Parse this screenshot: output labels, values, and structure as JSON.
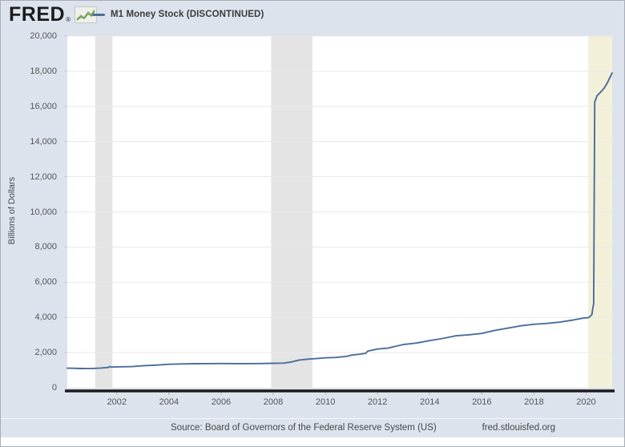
{
  "header": {
    "logo_text": "FRED",
    "logo_mark": "®",
    "legend_label": "M1 Money Stock (DISCONTINUED)",
    "legend_color": "#4a6d9b"
  },
  "footer": {
    "source": "Source: Board of Governors of the Federal Reserve System (US)",
    "site": "fred.stlouisfed.org"
  },
  "colors": {
    "card_background": "#dce3ed",
    "plot_background": "#ffffff",
    "gridline": "#e9e9e9",
    "recession_gray": "#e4e4e4",
    "covid_highlight": "#f3f0da",
    "axis_line": "#1b1b1b",
    "series_line": "#4a6d9b",
    "tick_mark": "#b5b5b5"
  },
  "chart_data": {
    "type": "line",
    "title": "M1 Money Stock (DISCONTINUED)",
    "xlabel": "",
    "ylabel": "Billions of Dollars",
    "units": "Billions of Dollars",
    "grid": true,
    "legend_position": "top-left",
    "xlim": [
      2000.1,
      2021.0
    ],
    "ylim": [
      0,
      20000
    ],
    "x_ticks": [
      2002,
      2004,
      2006,
      2008,
      2010,
      2012,
      2014,
      2016,
      2018,
      2020
    ],
    "y_ticks": [
      {
        "value": 0,
        "label": "0"
      },
      {
        "value": 2000,
        "label": "2,000"
      },
      {
        "value": 4000,
        "label": "4,000"
      },
      {
        "value": 6000,
        "label": "6,000"
      },
      {
        "value": 8000,
        "label": "8,000"
      },
      {
        "value": 10000,
        "label": "10,000"
      },
      {
        "value": 12000,
        "label": "12,000"
      },
      {
        "value": 14000,
        "label": "14,000"
      },
      {
        "value": 16000,
        "label": "16,000"
      },
      {
        "value": 18000,
        "label": "18,000"
      },
      {
        "value": 20000,
        "label": "20,000"
      }
    ],
    "recession_bands": [
      {
        "from": 2001.17,
        "to": 2001.83,
        "color": "#e4e4e4"
      },
      {
        "from": 2007.92,
        "to": 2009.5,
        "color": "#e4e4e4"
      },
      {
        "from": 2020.08,
        "to": 2021.0,
        "color": "#f3f0da"
      }
    ],
    "series": [
      {
        "name": "M1 Money Stock (DISCONTINUED)",
        "color": "#4a6d9b",
        "points": [
          [
            2000.1,
            1112
          ],
          [
            2000.3,
            1105
          ],
          [
            2000.6,
            1095
          ],
          [
            2000.9,
            1090
          ],
          [
            2001.1,
            1100
          ],
          [
            2001.4,
            1120
          ],
          [
            2001.65,
            1150
          ],
          [
            2001.72,
            1205
          ],
          [
            2001.8,
            1170
          ],
          [
            2002.0,
            1190
          ],
          [
            2002.3,
            1195
          ],
          [
            2002.6,
            1205
          ],
          [
            2003.0,
            1250
          ],
          [
            2003.5,
            1285
          ],
          [
            2004.0,
            1335
          ],
          [
            2004.5,
            1355
          ],
          [
            2005.0,
            1365
          ],
          [
            2005.5,
            1370
          ],
          [
            2006.0,
            1375
          ],
          [
            2006.5,
            1370
          ],
          [
            2007.0,
            1370
          ],
          [
            2007.5,
            1375
          ],
          [
            2008.0,
            1390
          ],
          [
            2008.4,
            1400
          ],
          [
            2008.7,
            1465
          ],
          [
            2008.85,
            1520
          ],
          [
            2009.0,
            1575
          ],
          [
            2009.3,
            1620
          ],
          [
            2009.6,
            1655
          ],
          [
            2010.0,
            1700
          ],
          [
            2010.4,
            1720
          ],
          [
            2010.8,
            1780
          ],
          [
            2011.0,
            1855
          ],
          [
            2011.3,
            1905
          ],
          [
            2011.55,
            1955
          ],
          [
            2011.62,
            2080
          ],
          [
            2012.0,
            2200
          ],
          [
            2012.4,
            2250
          ],
          [
            2012.8,
            2390
          ],
          [
            2013.0,
            2460
          ],
          [
            2013.5,
            2540
          ],
          [
            2014.0,
            2680
          ],
          [
            2014.5,
            2800
          ],
          [
            2015.0,
            2950
          ],
          [
            2015.5,
            3010
          ],
          [
            2016.0,
            3090
          ],
          [
            2016.5,
            3260
          ],
          [
            2017.0,
            3390
          ],
          [
            2017.5,
            3520
          ],
          [
            2018.0,
            3610
          ],
          [
            2018.5,
            3660
          ],
          [
            2019.0,
            3730
          ],
          [
            2019.5,
            3850
          ],
          [
            2019.9,
            3960
          ],
          [
            2020.1,
            3990
          ],
          [
            2020.22,
            4150
          ],
          [
            2020.29,
            4800
          ],
          [
            2020.33,
            16240
          ],
          [
            2020.42,
            16600
          ],
          [
            2020.55,
            16800
          ],
          [
            2020.7,
            17050
          ],
          [
            2020.8,
            17300
          ],
          [
            2020.9,
            17600
          ],
          [
            2021.0,
            17900
          ]
        ]
      }
    ]
  }
}
